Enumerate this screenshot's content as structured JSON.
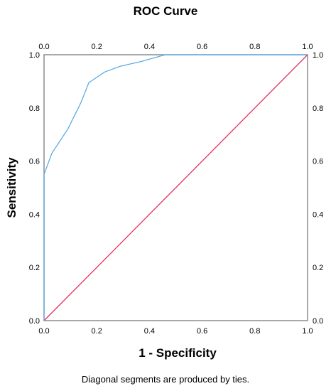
{
  "chart_data": {
    "type": "line",
    "title": "ROC Curve",
    "xlabel": "1 - Specificity",
    "ylabel": "Sensitivity",
    "footnote": "Diagonal segments are produced by ties.",
    "xlim": [
      0,
      1
    ],
    "ylim": [
      0,
      1
    ],
    "x_ticks": [
      "0.0",
      "0.2",
      "0.4",
      "0.6",
      "0.8",
      "1.0"
    ],
    "y_ticks": [
      "0.0",
      "0.2",
      "0.4",
      "0.6",
      "0.8",
      "1.0"
    ],
    "grid": false,
    "series": [
      {
        "color": "#5DADE2",
        "x": [
          0.0,
          0.0,
          0.0,
          0.03,
          0.09,
          0.14,
          0.17,
          0.23,
          0.29,
          0.37,
          0.46,
          0.66,
          0.83,
          1.0
        ],
        "y": [
          0.0,
          0.2,
          0.55,
          0.63,
          0.72,
          0.82,
          0.895,
          0.935,
          0.957,
          0.975,
          1.0,
          1.0,
          1.0,
          1.0
        ]
      },
      {
        "color": "#E8305F",
        "x": [
          0.0,
          1.0
        ],
        "y": [
          0.0,
          1.0
        ]
      }
    ]
  },
  "colors": {
    "frame": "#8C8C8C",
    "roc_line": "#5DADE2",
    "reference_line": "#E8305F"
  }
}
